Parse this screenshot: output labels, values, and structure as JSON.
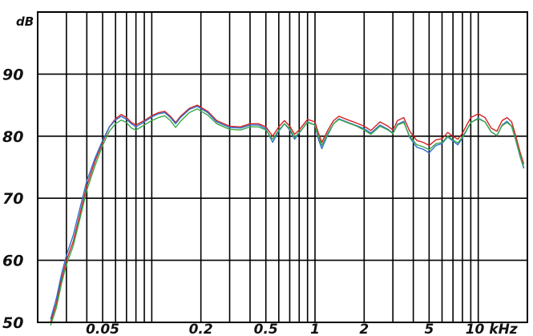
{
  "chart_data": {
    "type": "line",
    "ylabel": "dB",
    "xunit": "kHz",
    "xscale": "log",
    "xlim": [
      0.02,
      20
    ],
    "ylim": [
      50,
      100
    ],
    "grid": true,
    "legend": "none",
    "yticks": [
      {
        "value": 90,
        "label": "90"
      },
      {
        "value": 80,
        "label": "80"
      },
      {
        "value": 70,
        "label": "70"
      },
      {
        "value": 60,
        "label": "60"
      },
      {
        "value": 50,
        "label": "50"
      }
    ],
    "xticks": [
      {
        "value": 0.05,
        "label": "0.05"
      },
      {
        "value": 0.2,
        "label": "0.2"
      },
      {
        "value": 0.5,
        "label": "0.5"
      },
      {
        "value": 1,
        "label": "1"
      },
      {
        "value": 2,
        "label": "2"
      },
      {
        "value": 5,
        "label": "5"
      },
      {
        "value": 10,
        "label": "10 kHz"
      }
    ],
    "series": [
      {
        "color": "#d42020",
        "points": [
          [
            0.024,
            50
          ],
          [
            0.026,
            53
          ],
          [
            0.028,
            57
          ],
          [
            0.03,
            60
          ],
          [
            0.033,
            63
          ],
          [
            0.036,
            67
          ],
          [
            0.04,
            72
          ],
          [
            0.045,
            76
          ],
          [
            0.05,
            79
          ],
          [
            0.055,
            81.5
          ],
          [
            0.06,
            82.8
          ],
          [
            0.065,
            83.5
          ],
          [
            0.07,
            83
          ],
          [
            0.075,
            82.2
          ],
          [
            0.08,
            81.8
          ],
          [
            0.09,
            82.5
          ],
          [
            0.1,
            83.3
          ],
          [
            0.11,
            83.8
          ],
          [
            0.12,
            84
          ],
          [
            0.13,
            83.2
          ],
          [
            0.14,
            82.2
          ],
          [
            0.15,
            83.2
          ],
          [
            0.17,
            84.5
          ],
          [
            0.19,
            85
          ],
          [
            0.22,
            84
          ],
          [
            0.25,
            82.5
          ],
          [
            0.3,
            81.6
          ],
          [
            0.35,
            81.5
          ],
          [
            0.4,
            82
          ],
          [
            0.45,
            82
          ],
          [
            0.5,
            81.5
          ],
          [
            0.55,
            80
          ],
          [
            0.6,
            81.5
          ],
          [
            0.65,
            82.5
          ],
          [
            0.7,
            81.6
          ],
          [
            0.75,
            80.3
          ],
          [
            0.8,
            81
          ],
          [
            0.9,
            82.7
          ],
          [
            1.0,
            82.3
          ],
          [
            1.05,
            80.5
          ],
          [
            1.1,
            79
          ],
          [
            1.2,
            81
          ],
          [
            1.3,
            82.5
          ],
          [
            1.4,
            83.2
          ],
          [
            1.6,
            82.6
          ],
          [
            1.8,
            82.1
          ],
          [
            2.0,
            81.6
          ],
          [
            2.2,
            80.9
          ],
          [
            2.5,
            82.3
          ],
          [
            2.8,
            81.6
          ],
          [
            3.0,
            81
          ],
          [
            3.2,
            82.5
          ],
          [
            3.5,
            83
          ],
          [
            3.8,
            80.8
          ],
          [
            4.2,
            79.3
          ],
          [
            4.6,
            79
          ],
          [
            5.0,
            78.5
          ],
          [
            5.5,
            79.4
          ],
          [
            6.0,
            79.6
          ],
          [
            6.5,
            80.6
          ],
          [
            7.0,
            80
          ],
          [
            7.5,
            79.5
          ],
          [
            8.0,
            80.5
          ],
          [
            9.0,
            83
          ],
          [
            10.0,
            83.6
          ],
          [
            11.0,
            83
          ],
          [
            12.0,
            81.3
          ],
          [
            13.0,
            80.8
          ],
          [
            14.0,
            82.5
          ],
          [
            15.0,
            83
          ],
          [
            16.0,
            82.3
          ],
          [
            17.0,
            80
          ],
          [
            18.0,
            77.5
          ],
          [
            19.0,
            75.5
          ]
        ]
      },
      {
        "color": "#2f6fd0",
        "points": [
          [
            0.024,
            50.5
          ],
          [
            0.026,
            53.8
          ],
          [
            0.028,
            57.8
          ],
          [
            0.03,
            60.8
          ],
          [
            0.033,
            64
          ],
          [
            0.036,
            68
          ],
          [
            0.04,
            72.8
          ],
          [
            0.045,
            76.5
          ],
          [
            0.05,
            79.3
          ],
          [
            0.055,
            81.5
          ],
          [
            0.06,
            82.6
          ],
          [
            0.065,
            83.2
          ],
          [
            0.07,
            82.7
          ],
          [
            0.075,
            82
          ],
          [
            0.08,
            81.5
          ],
          [
            0.09,
            82.3
          ],
          [
            0.1,
            83.1
          ],
          [
            0.11,
            83.6
          ],
          [
            0.12,
            83.8
          ],
          [
            0.13,
            83
          ],
          [
            0.14,
            82
          ],
          [
            0.15,
            83
          ],
          [
            0.17,
            84.3
          ],
          [
            0.19,
            84.8
          ],
          [
            0.22,
            83.8
          ],
          [
            0.25,
            82.3
          ],
          [
            0.3,
            81.4
          ],
          [
            0.35,
            81.3
          ],
          [
            0.4,
            81.8
          ],
          [
            0.45,
            81.8
          ],
          [
            0.5,
            81.2
          ],
          [
            0.55,
            79
          ],
          [
            0.6,
            80.8
          ],
          [
            0.65,
            82
          ],
          [
            0.7,
            81
          ],
          [
            0.75,
            79.5
          ],
          [
            0.8,
            80.5
          ],
          [
            0.9,
            82.3
          ],
          [
            1.0,
            81.8
          ],
          [
            1.05,
            79.5
          ],
          [
            1.1,
            78
          ],
          [
            1.2,
            80.3
          ],
          [
            1.3,
            82
          ],
          [
            1.4,
            82.8
          ],
          [
            1.6,
            82.2
          ],
          [
            1.8,
            81.7
          ],
          [
            2.0,
            81.2
          ],
          [
            2.2,
            80.5
          ],
          [
            2.5,
            81.8
          ],
          [
            2.8,
            81.1
          ],
          [
            3.0,
            80.5
          ],
          [
            3.2,
            81.9
          ],
          [
            3.5,
            82.4
          ],
          [
            3.8,
            79.8
          ],
          [
            4.2,
            78.2
          ],
          [
            4.6,
            77.9
          ],
          [
            5.0,
            77.3
          ],
          [
            5.5,
            78.5
          ],
          [
            6.0,
            78.8
          ],
          [
            6.5,
            79.9
          ],
          [
            7.0,
            79.2
          ],
          [
            7.5,
            78.6
          ],
          [
            8.0,
            79.7
          ],
          [
            9.0,
            82.2
          ],
          [
            10.0,
            82.9
          ],
          [
            11.0,
            82.3
          ],
          [
            12.0,
            80.7
          ],
          [
            13.0,
            80.1
          ],
          [
            14.0,
            81.8
          ],
          [
            15.0,
            82.4
          ],
          [
            16.0,
            81.6
          ],
          [
            17.0,
            79.3
          ],
          [
            18.0,
            76.8
          ],
          [
            19.0,
            74.8
          ]
        ]
      },
      {
        "color": "#3aa845",
        "points": [
          [
            0.024,
            49.5
          ],
          [
            0.026,
            52.3
          ],
          [
            0.028,
            56.3
          ],
          [
            0.03,
            59.3
          ],
          [
            0.033,
            62.3
          ],
          [
            0.036,
            66.3
          ],
          [
            0.04,
            71.3
          ],
          [
            0.045,
            75.3
          ],
          [
            0.05,
            78.5
          ],
          [
            0.055,
            80.8
          ],
          [
            0.06,
            82
          ],
          [
            0.065,
            82.6
          ],
          [
            0.07,
            82.2
          ],
          [
            0.075,
            81.3
          ],
          [
            0.08,
            81
          ],
          [
            0.09,
            81.8
          ],
          [
            0.1,
            82.5
          ],
          [
            0.11,
            83
          ],
          [
            0.12,
            83.3
          ],
          [
            0.13,
            82.5
          ],
          [
            0.14,
            81.4
          ],
          [
            0.15,
            82.4
          ],
          [
            0.17,
            83.8
          ],
          [
            0.19,
            84.4
          ],
          [
            0.22,
            83.4
          ],
          [
            0.25,
            82
          ],
          [
            0.3,
            81.1
          ],
          [
            0.35,
            81
          ],
          [
            0.4,
            81.5
          ],
          [
            0.45,
            81.5
          ],
          [
            0.5,
            81
          ],
          [
            0.55,
            79.5
          ],
          [
            0.6,
            81
          ],
          [
            0.65,
            82
          ],
          [
            0.7,
            81.2
          ],
          [
            0.75,
            79.8
          ],
          [
            0.8,
            80.6
          ],
          [
            0.9,
            82.2
          ],
          [
            1.0,
            81.8
          ],
          [
            1.05,
            80
          ],
          [
            1.1,
            78.5
          ],
          [
            1.2,
            80.5
          ],
          [
            1.3,
            82
          ],
          [
            1.4,
            82.7
          ],
          [
            1.6,
            82.1
          ],
          [
            1.8,
            81.6
          ],
          [
            2.0,
            81
          ],
          [
            2.2,
            80.3
          ],
          [
            2.5,
            81.6
          ],
          [
            2.8,
            81
          ],
          [
            3.0,
            80.4
          ],
          [
            3.2,
            81.8
          ],
          [
            3.5,
            82.2
          ],
          [
            3.8,
            80
          ],
          [
            4.2,
            78.6
          ],
          [
            4.6,
            78.3
          ],
          [
            5.0,
            77.8
          ],
          [
            5.5,
            78.8
          ],
          [
            6.0,
            79
          ],
          [
            6.5,
            80
          ],
          [
            7.0,
            79.4
          ],
          [
            7.5,
            78.9
          ],
          [
            8.0,
            79.9
          ],
          [
            9.0,
            82.2
          ],
          [
            10.0,
            82.8
          ],
          [
            11.0,
            82.3
          ],
          [
            12.0,
            80.7
          ],
          [
            13.0,
            80.1
          ],
          [
            14.0,
            81.7
          ],
          [
            15.0,
            82.2
          ],
          [
            16.0,
            81.6
          ],
          [
            17.0,
            79.4
          ],
          [
            18.0,
            77
          ],
          [
            19.0,
            75
          ]
        ]
      }
    ]
  }
}
